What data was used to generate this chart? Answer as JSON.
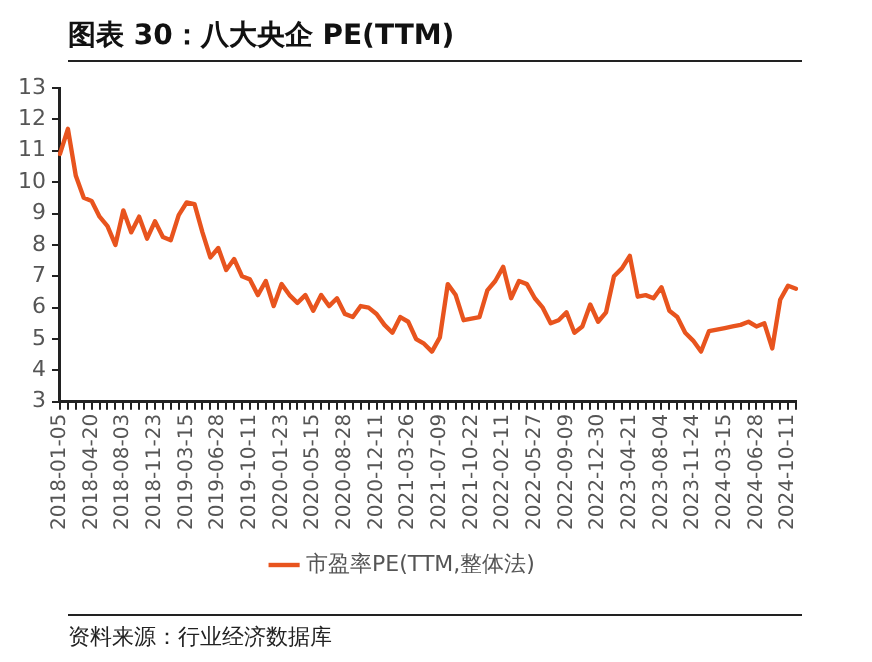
{
  "chart_data": {
    "type": "line",
    "title": "图表 30：八大央企 PE(TTM)",
    "categories": [
      "2018-01-05",
      null,
      null,
      null,
      "2018-04-20",
      null,
      null,
      null,
      "2018-08-03",
      null,
      null,
      null,
      "2018-11-23",
      null,
      null,
      null,
      "2019-03-15",
      null,
      null,
      null,
      "2019-06-28",
      null,
      null,
      null,
      "2019-10-11",
      null,
      null,
      null,
      "2020-01-23",
      null,
      null,
      null,
      "2020-05-15",
      null,
      null,
      null,
      "2020-08-28",
      null,
      null,
      null,
      "2020-12-11",
      null,
      null,
      null,
      "2021-03-26",
      null,
      null,
      null,
      "2021-07-09",
      null,
      null,
      null,
      "2021-10-22",
      null,
      null,
      null,
      "2022-02-11",
      null,
      null,
      null,
      "2022-05-27",
      null,
      null,
      null,
      "2022-09-09",
      null,
      null,
      null,
      "2022-12-30",
      null,
      null,
      null,
      "2023-04-21",
      null,
      null,
      null,
      "2023-08-04",
      null,
      null,
      null,
      "2023-11-24",
      null,
      null,
      null,
      "2024-03-15",
      null,
      null,
      null,
      "2024-06-28",
      null,
      null,
      null,
      "2024-10-11",
      null
    ],
    "series": [
      {
        "name": "市盈率PE(TTM,整体法)",
        "color": "#e8541e",
        "values": [
          10.9,
          11.7,
          10.2,
          9.5,
          9.4,
          8.9,
          8.6,
          8.0,
          9.1,
          8.4,
          8.9,
          8.2,
          8.75,
          8.25,
          8.15,
          8.95,
          9.35,
          9.3,
          8.4,
          7.6,
          7.9,
          7.2,
          7.55,
          7.0,
          6.9,
          6.4,
          6.85,
          6.05,
          6.75,
          6.4,
          6.15,
          6.4,
          5.9,
          6.4,
          6.05,
          6.3,
          5.8,
          5.7,
          6.05,
          6.0,
          5.8,
          5.45,
          5.2,
          5.7,
          5.55,
          5.0,
          4.85,
          4.6,
          5.05,
          6.75,
          6.4,
          5.6,
          5.65,
          5.7,
          6.55,
          6.85,
          7.3,
          6.3,
          6.85,
          6.75,
          6.3,
          6.0,
          5.5,
          5.6,
          5.85,
          5.2,
          5.4,
          6.1,
          5.55,
          5.85,
          7.0,
          7.25,
          7.65,
          6.35,
          6.4,
          6.3,
          6.65,
          5.9,
          5.7,
          5.2,
          4.95,
          4.6,
          5.25,
          5.3,
          5.35,
          5.4,
          5.45,
          5.55,
          5.4,
          5.5,
          4.7,
          6.25,
          6.7,
          6.6
        ]
      }
    ],
    "ylim": [
      3,
      13
    ],
    "yticks": [
      3,
      4,
      5,
      6,
      7,
      8,
      9,
      10,
      11,
      12,
      13
    ],
    "grid": false,
    "legend": "bottom",
    "marker": "none",
    "line_style": "solid",
    "annotations": [
      "资料来源：行业经济数据库"
    ]
  }
}
